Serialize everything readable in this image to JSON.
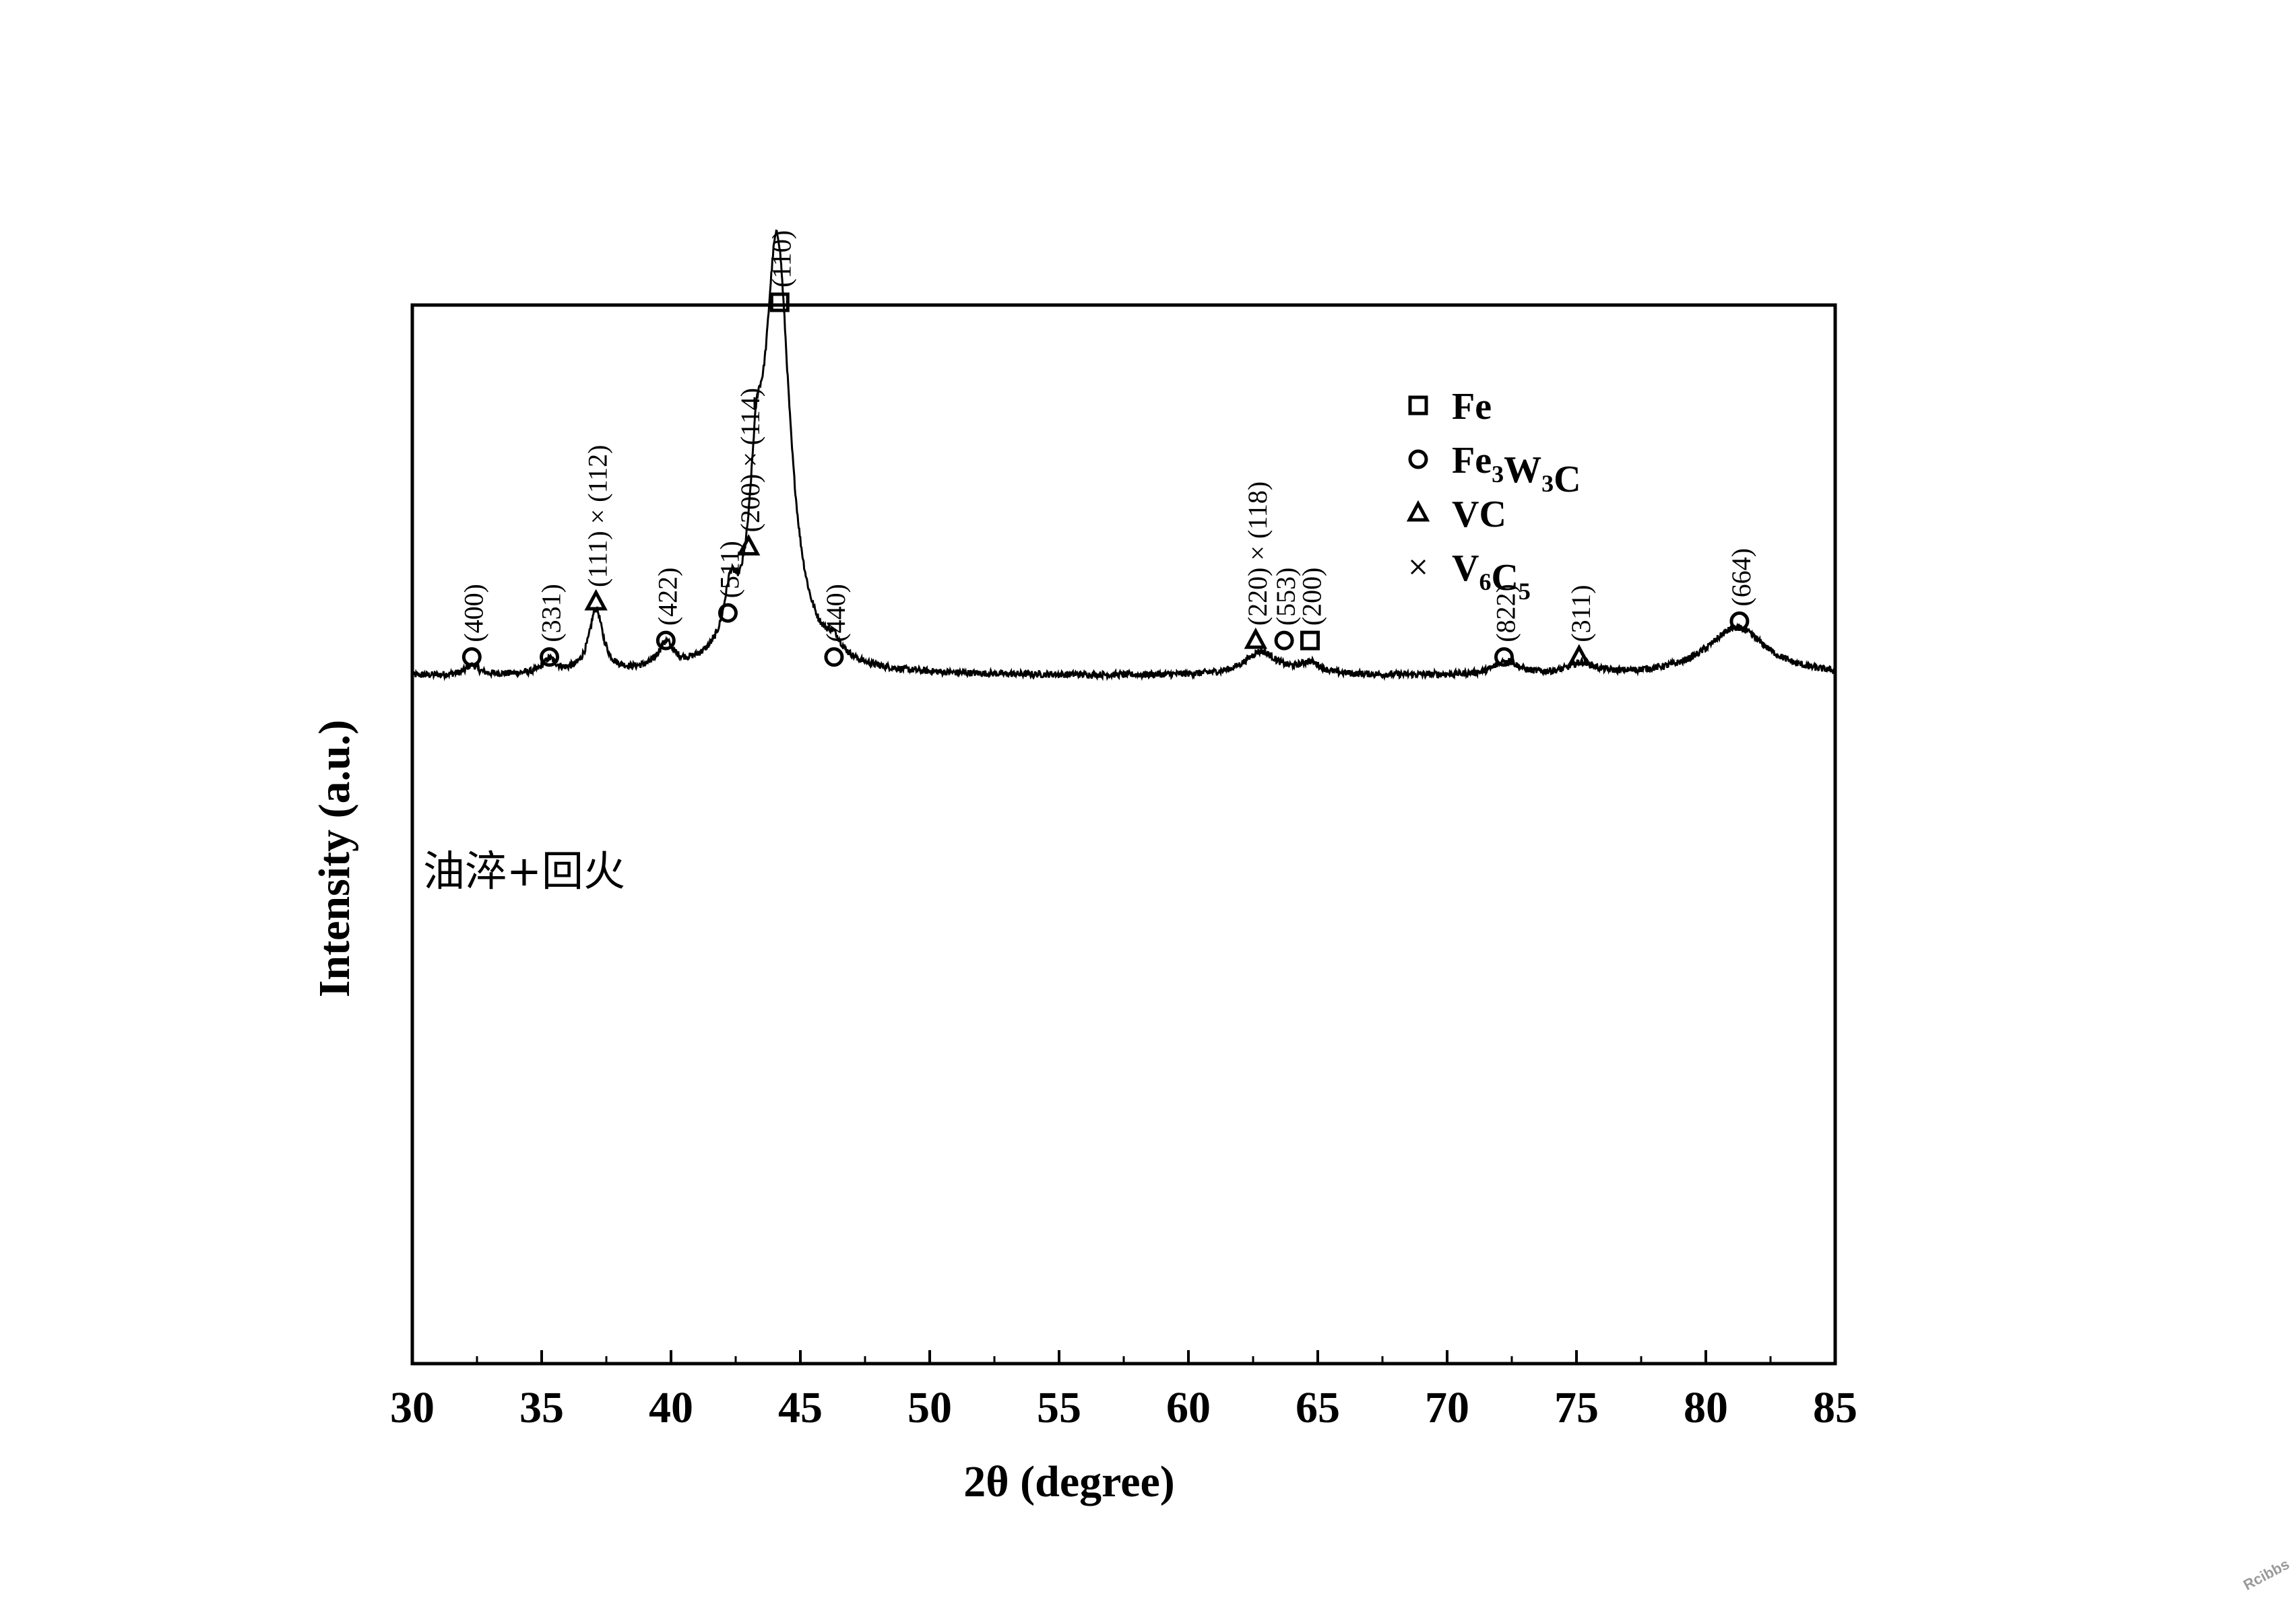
{
  "chart_data": {
    "type": "line",
    "xlabel": "2θ (degree)",
    "ylabel": "Intensity (a.u.)",
    "xlim": [
      30,
      85
    ],
    "ylim": [
      -2.5,
      1.35
    ],
    "xticks": [
      30,
      35,
      40,
      45,
      50,
      55,
      60,
      65,
      70,
      75,
      80,
      85
    ],
    "minor_xtick_step": 2.5,
    "y_ticks_shown": false,
    "grid": false,
    "sample_label": "油淬+回火",
    "series": [
      {
        "name": "油淬+回火",
        "color": "#000000",
        "baseline": 0.0,
        "peaks": [
          {
            "x": 32.3,
            "height": 0.035,
            "width": 0.28
          },
          {
            "x": 35.3,
            "height": 0.05,
            "width": 0.3
          },
          {
            "x": 37.1,
            "height": 0.23,
            "width": 0.32
          },
          {
            "x": 39.8,
            "height": 0.09,
            "width": 0.35
          },
          {
            "x": 42.3,
            "height": 0.19,
            "width": 0.3
          },
          {
            "x": 43.3,
            "height": 0.42,
            "width": 0.3
          },
          {
            "x": 44.1,
            "height": 1.55,
            "width": 0.6
          },
          {
            "x": 46.3,
            "height": 0.05,
            "width": 0.35
          },
          {
            "x": 62.8,
            "height": 0.085,
            "width": 0.75
          },
          {
            "x": 64.7,
            "height": 0.04,
            "width": 0.5
          },
          {
            "x": 72.3,
            "height": 0.05,
            "width": 0.55
          },
          {
            "x": 75.2,
            "height": 0.04,
            "width": 0.6
          },
          {
            "x": 81.2,
            "height": 0.175,
            "width": 1.4
          }
        ],
        "noise_amplitude": 0.012
      }
    ],
    "legend": {
      "position": "top-right",
      "entries": [
        {
          "marker": "square",
          "label": "Fe",
          "sub": []
        },
        {
          "marker": "circle",
          "label": "Fe3W3C",
          "parts": [
            [
              "Fe",
              ""
            ],
            [
              "3",
              "sub"
            ],
            [
              "W",
              ""
            ],
            [
              "3",
              "sub"
            ],
            [
              "C",
              ""
            ]
          ]
        },
        {
          "marker": "triangle",
          "label": "VC",
          "parts": [
            [
              "VC",
              ""
            ]
          ]
        },
        {
          "marker": "cross",
          "label": "V6C5",
          "parts": [
            [
              "V",
              ""
            ],
            [
              "6",
              "sub"
            ],
            [
              "C",
              ""
            ],
            [
              "5",
              "sub"
            ]
          ]
        }
      ]
    },
    "annotations": [
      {
        "x": 32.3,
        "marker": "circle",
        "text": "(400)",
        "level": 0.07
      },
      {
        "x": 35.3,
        "marker": "circle",
        "text": "(331)",
        "level": 0.07
      },
      {
        "x": 37.1,
        "marker": "triangle",
        "text": "(111) × (112)",
        "level": 0.27
      },
      {
        "x": 39.8,
        "marker": "circle",
        "text": "(422)",
        "level": 0.13
      },
      {
        "x": 42.2,
        "marker": "circle",
        "text": "(511)",
        "level": 0.23
      },
      {
        "x": 43.0,
        "marker": "triangle",
        "text": "(200) × (114)",
        "level": 0.47
      },
      {
        "x": 44.2,
        "marker": "square",
        "text": "(110)",
        "level": 1.36
      },
      {
        "x": 46.3,
        "marker": "circle",
        "text": "(440)",
        "level": 0.07
      },
      {
        "x": 62.6,
        "marker": "triangle",
        "text": "(220) × (118)",
        "level": 0.13
      },
      {
        "x": 63.7,
        "marker": "circle",
        "text": "(553)",
        "level": 0.13
      },
      {
        "x": 64.7,
        "marker": "square",
        "text": "(200)",
        "level": 0.13
      },
      {
        "x": 72.2,
        "marker": "circle",
        "text": "(822)",
        "level": 0.07
      },
      {
        "x": 75.1,
        "marker": "triangle",
        "text": "(311)",
        "level": 0.07
      },
      {
        "x": 81.3,
        "marker": "circle",
        "text": "(664)",
        "level": 0.2
      }
    ]
  },
  "watermark": "Rcibbs"
}
